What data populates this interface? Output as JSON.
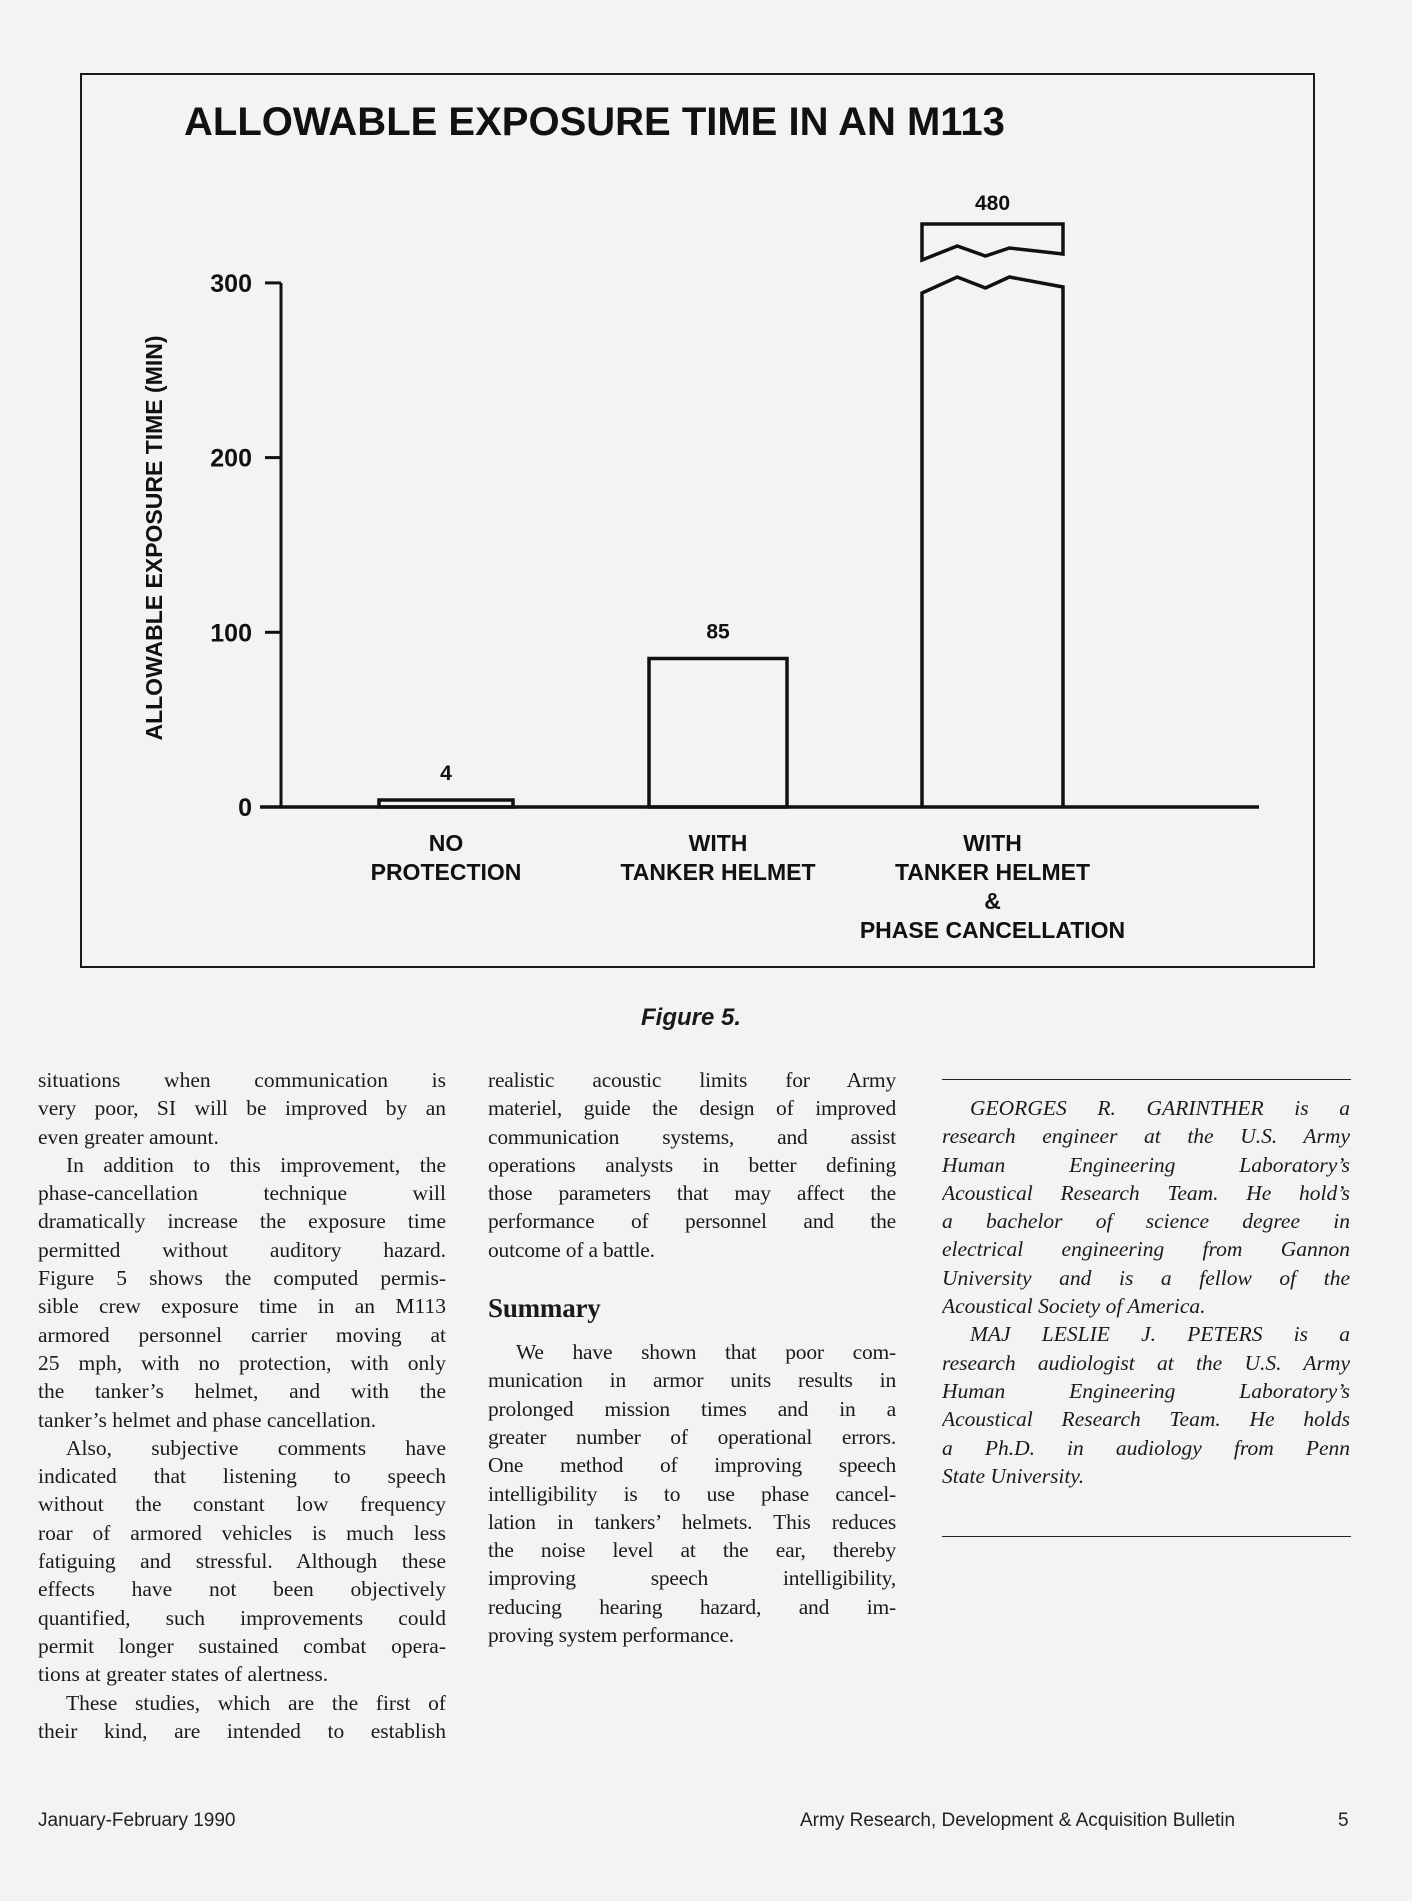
{
  "chart_data": {
    "type": "bar",
    "title": "ALLOWABLE EXPOSURE TIME IN AN M113",
    "ylabel": "ALLOWABLE EXPOSURE TIME (MIN)",
    "xlabel": "",
    "ylim": [
      0,
      300
    ],
    "yticks": [
      0,
      100,
      200,
      300
    ],
    "axis_break_on_last_bar": true,
    "categories": [
      [
        "NO",
        "PROTECTION"
      ],
      [
        "WITH",
        "TANKER HELMET"
      ],
      [
        "WITH",
        "TANKER HELMET",
        "&",
        "PHASE CANCELLATION"
      ]
    ],
    "values": [
      4,
      85,
      480
    ],
    "data_labels": [
      "4",
      "85",
      "480"
    ],
    "grid": false,
    "legend": "none"
  },
  "caption": "Figure 5.",
  "columns": {
    "col1": [
      {
        "lines": [
          "situations when communication is",
          "very poor, SI will be improved by an",
          "even greater amount."
        ]
      },
      {
        "indent": true,
        "lines": [
          "In addition to this improvement, the",
          "phase-cancellation technique will",
          "dramatically increase the exposure time",
          "permitted without auditory hazard.",
          "Figure 5 shows the computed permis-",
          "sible crew exposure time in an M113",
          "armored personnel carrier moving at",
          "25 mph, with no protection, with only",
          "the tanker’s helmet, and with the",
          "tanker’s helmet and phase cancellation."
        ]
      },
      {
        "indent": true,
        "lines": [
          "Also, subjective comments have",
          "indicated that listening to speech",
          "without the constant low frequency",
          "roar of armored vehicles is much less",
          "fatiguing and stressful. Although these",
          "effects have not been objectively",
          "quantified, such improvements could",
          "permit longer sustained combat opera-",
          "tions at greater states of alertness."
        ]
      },
      {
        "indent": true,
        "continues": true,
        "lines": [
          "These studies, which are the first of",
          "their kind, are intended to establish"
        ]
      }
    ],
    "col2_intro": {
      "continues": false,
      "lines": [
        "realistic acoustic limits for Army",
        "materiel, guide the design of improved",
        "communication systems, and assist",
        "operations analysts in better defining",
        "those parameters that may affect the",
        "performance of personnel and the",
        "outcome of a battle."
      ]
    },
    "col2_heading": "Summary",
    "col2_summary": {
      "indent": true,
      "lines": [
        "We have shown that poor com-",
        "munication in armor units results in",
        "prolonged mission times and in a",
        "greater number of operational errors.",
        "One method of improving speech",
        "intelligibility is to use phase cancel-",
        "lation in tankers’ helmets. This reduces",
        "the noise level at the ear, thereby",
        "improving speech intelligibility,",
        "reducing hearing hazard, and im-",
        "proving system performance."
      ]
    },
    "col3": [
      {
        "indent": true,
        "lines": [
          "GEORGES R. GARINTHER is a",
          "research engineer at the U.S. Army",
          "Human Engineering Laboratory’s",
          "Acoustical Research Team. He hold’s",
          "a bachelor of science degree in",
          "electrical engineering from Gannon",
          "University and is a fellow of the",
          "Acoustical Society of America."
        ]
      },
      {
        "indent": true,
        "lines": [
          "MAJ LESLIE J. PETERS is a",
          "research audiologist at the U.S. Army",
          "Human Engineering Laboratory’s",
          "Acoustical Research Team. He holds",
          "a Ph.D. in audiology from Penn",
          "State University."
        ]
      }
    ]
  },
  "footer": {
    "date": "January-February 1990",
    "publication": "Army Research, Development & Acquisition Bulletin",
    "page": "5"
  }
}
